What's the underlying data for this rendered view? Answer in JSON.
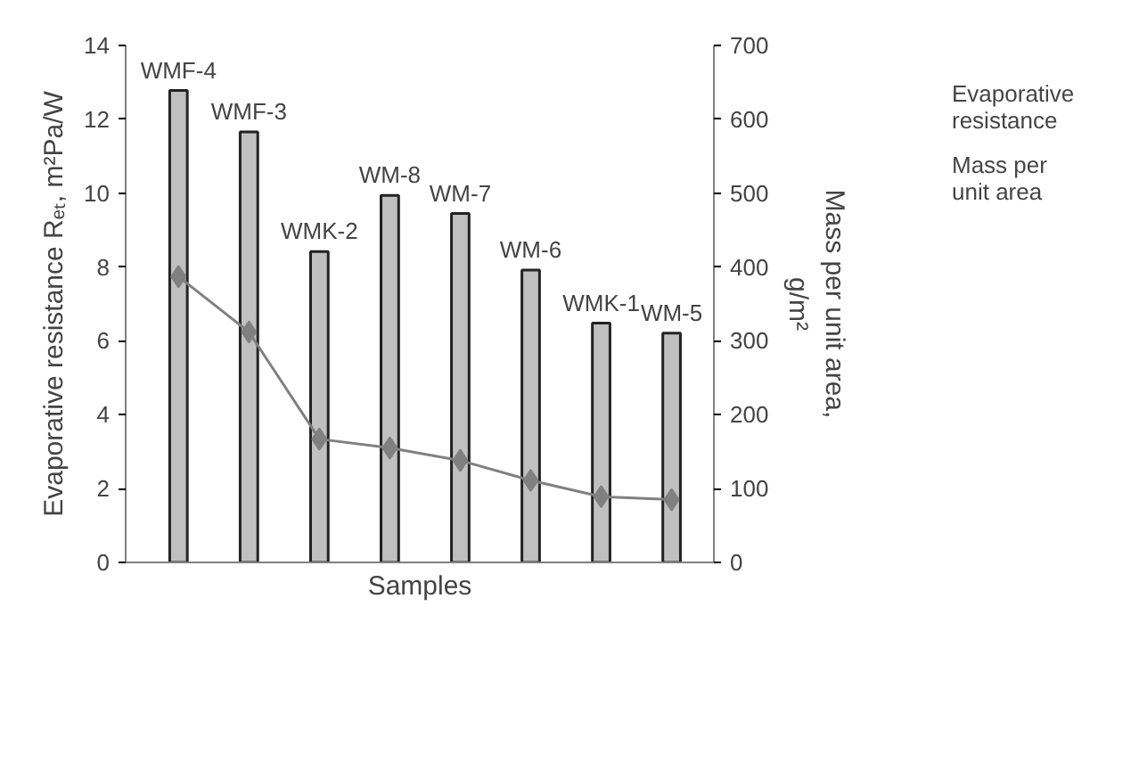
{
  "chart_data": {
    "type": "bar",
    "categories": [
      "WMF-4",
      "WMF-3",
      "WMK-2",
      "WM-8",
      "WM-7",
      "WM-6",
      "WMK-1",
      "WM-5"
    ],
    "xlabel": "Samples",
    "ylabel": "Evaporative resistance Rₑₜ, m²Pa/W",
    "y2label": "Mass per unit area, g/m²",
    "ylim": [
      0,
      14
    ],
    "yticks": [
      0,
      2,
      4,
      6,
      8,
      10,
      12,
      14
    ],
    "y2lim": [
      0,
      700
    ],
    "y2ticks": [
      0,
      100,
      200,
      300,
      400,
      500,
      600,
      700
    ],
    "series": [
      {
        "name": "Evaporative resistance",
        "color": "#c0c0c0",
        "values": [
          12.78,
          11.66,
          8.42,
          9.94,
          9.45,
          7.92,
          6.48,
          6.21
        ]
      },
      {
        "name": "Mass per unit area",
        "type": "line",
        "axis": "y2",
        "color": "#808080",
        "values": [
          387,
          312,
          167,
          155,
          138,
          111,
          89,
          85
        ]
      }
    ],
    "marker": "diamond",
    "line_style": "solid",
    "grid": false,
    "legend": "top right"
  }
}
